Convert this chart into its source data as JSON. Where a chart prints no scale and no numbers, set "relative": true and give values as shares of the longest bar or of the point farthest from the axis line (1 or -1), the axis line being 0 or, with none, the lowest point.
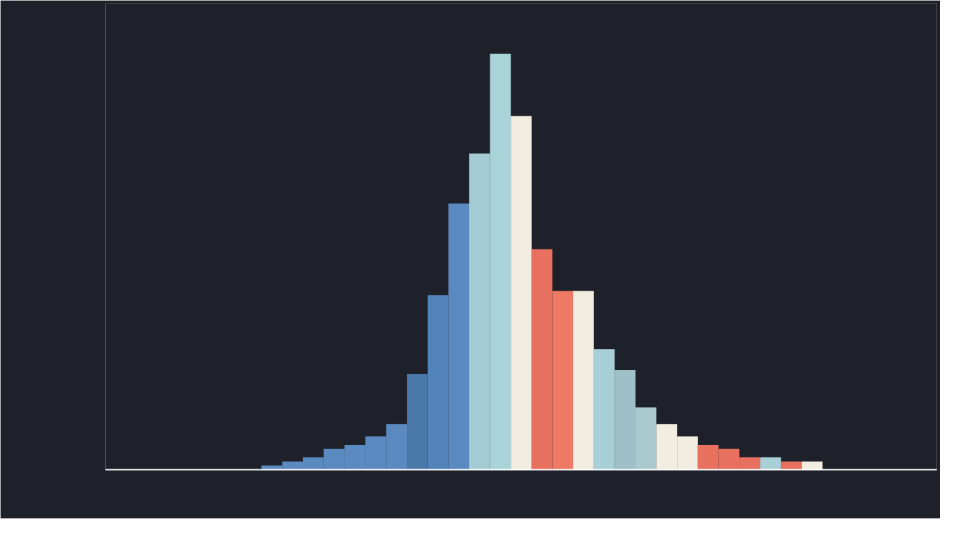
{
  "chart_data": {
    "type": "bar",
    "relative": true,
    "grid": false,
    "categories": [
      null,
      null,
      null,
      null,
      null,
      null,
      null,
      null,
      null,
      null,
      null,
      null,
      null,
      null,
      null,
      null,
      null,
      null,
      null,
      null,
      null,
      null,
      null,
      null,
      null,
      null,
      null
    ],
    "values": [
      0.01,
      0.02,
      0.03,
      0.05,
      0.06,
      0.08,
      0.11,
      0.23,
      0.42,
      0.64,
      0.76,
      1,
      0.85,
      0.53,
      0.43,
      0.43,
      0.29,
      0.24,
      0.15,
      0.11,
      0.08,
      0.06,
      0.05,
      0.03,
      0.03,
      0.02,
      0.02
    ],
    "colors": [
      "#5b8ac0",
      "#5b8ac0",
      "#5b8ac0",
      "#5b8ac0",
      "#5b8ac0",
      "#5b8ac0",
      "#5b8ac0",
      "#4a78a8",
      "#5283b8",
      "#5b8ac0",
      "#a3ccd4",
      "#a8d3d8",
      "#f3ece0",
      "#e8705e",
      "#ee7a66",
      "#f3ece0",
      "#a8cfd6",
      "#9fc0c8",
      "#a9c9ce",
      "#f3ece0",
      "#f3ece0",
      "#e8705e",
      "#e8705e",
      "#e8705e",
      "#a8cfd6",
      "#e8705e",
      "#f3ece0"
    ]
  }
}
